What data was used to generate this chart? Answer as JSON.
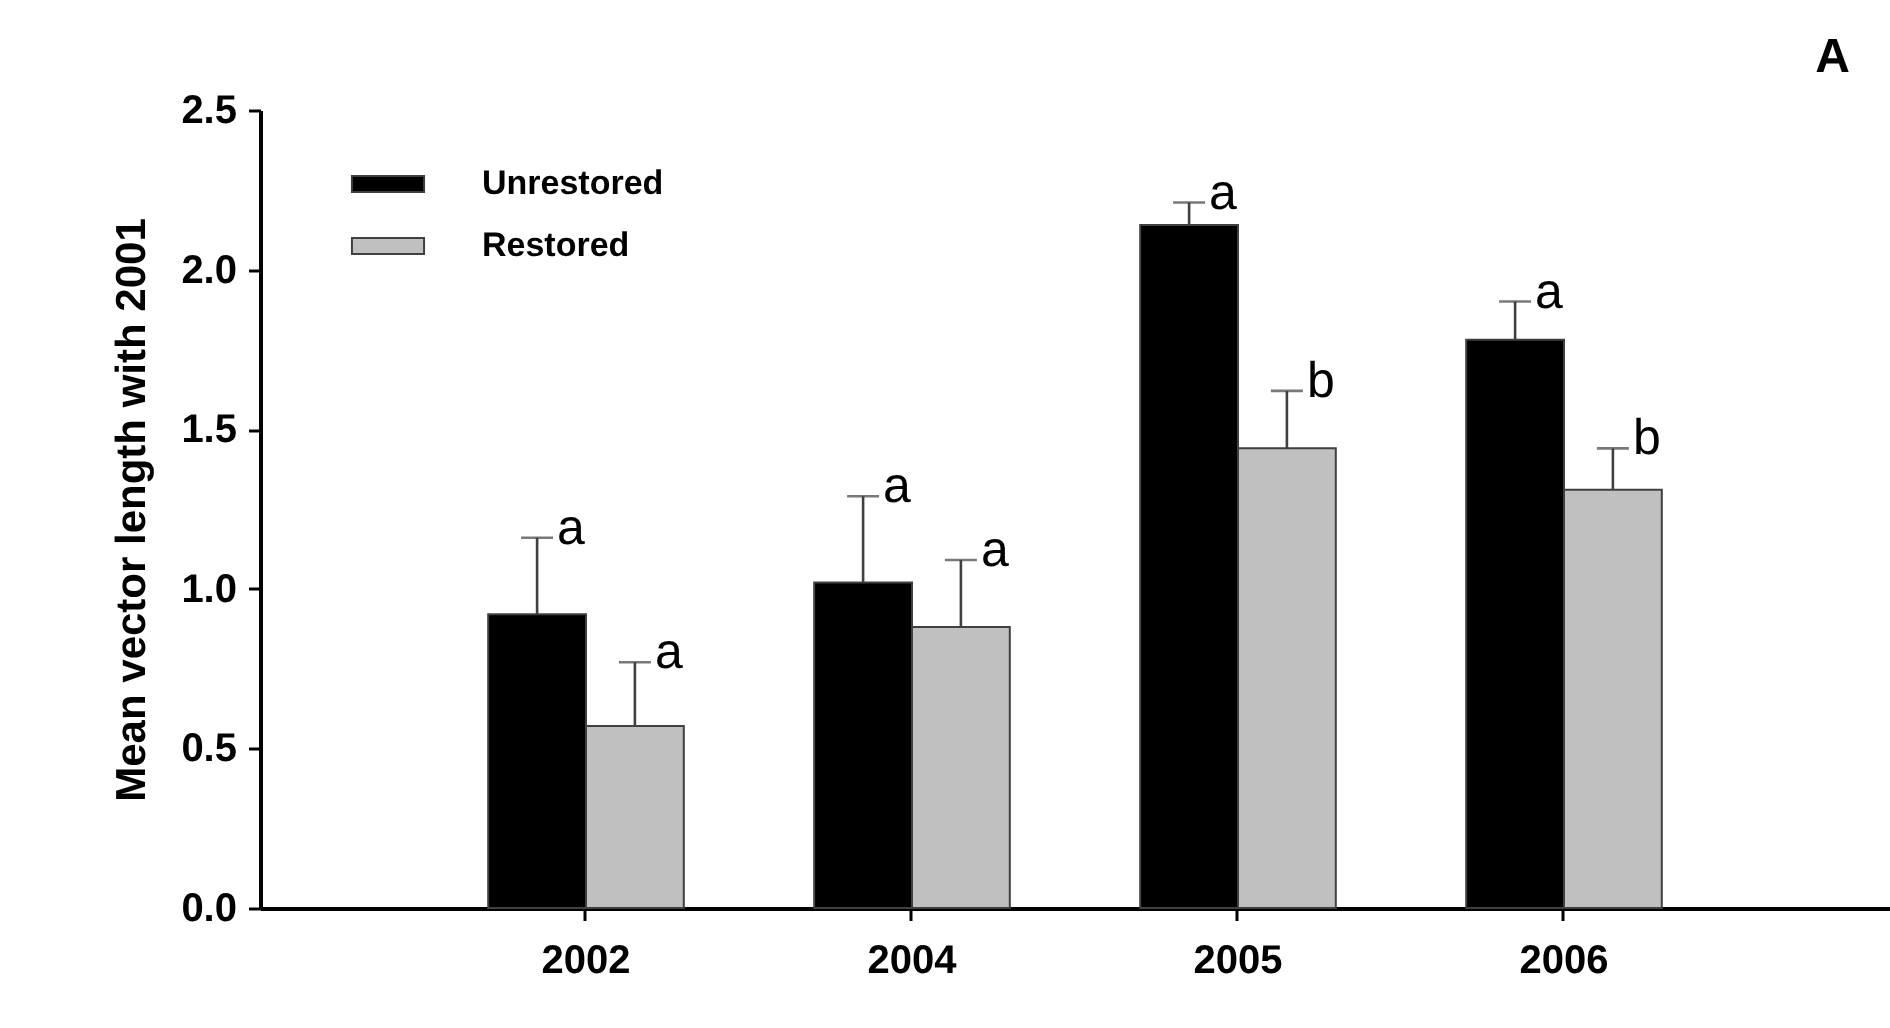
{
  "chart_data": {
    "type": "bar",
    "ylabel": "Mean vector length with 2001",
    "categories": [
      "2002",
      "2004",
      "2005",
      "2006"
    ],
    "series": [
      {
        "name": "Unrestored",
        "color": "#000000",
        "values": [
          0.92,
          1.02,
          2.14,
          1.78
        ],
        "errors": [
          [
            0.92,
            1.16
          ],
          [
            1.02,
            1.29
          ],
          [
            2.14,
            2.21
          ],
          [
            1.78,
            1.9
          ]
        ]
      },
      {
        "name": "Restored",
        "color": "#c0c0c0",
        "values": [
          0.57,
          0.88,
          1.44,
          1.31
        ],
        "errors": [
          [
            0.57,
            0.77
          ],
          [
            0.88,
            1.09
          ],
          [
            1.44,
            1.62
          ],
          [
            1.31,
            1.44
          ]
        ]
      }
    ],
    "ylim": [
      0,
      2.5
    ],
    "yticks": [
      {
        "value": 0,
        "label": "0.0"
      },
      {
        "value": 0.5,
        "label": "0.5"
      },
      {
        "value": 1,
        "label": "1.0"
      },
      {
        "value": 1.5,
        "label": "1.5"
      },
      {
        "value": 2,
        "label": "2.0"
      },
      {
        "value": 2.5,
        "label": "2.5"
      }
    ],
    "legend": "top left",
    "annotations": [
      {
        "text": "a",
        "x": "2002",
        "y": 0.92
      },
      {
        "text": "a",
        "x": "2002",
        "y": 0.57
      },
      {
        "text": "a",
        "x": "2004",
        "y": 1.02
      },
      {
        "text": "a",
        "x": "2004",
        "y": 0.88
      },
      {
        "text": "a",
        "x": "2005",
        "y": 2.14
      },
      {
        "text": "b",
        "x": "2005",
        "y": 1.44
      },
      {
        "text": "a",
        "x": "2006",
        "y": 1.78
      },
      {
        "text": "b",
        "x": "2006",
        "y": 1.31
      },
      "A"
    ]
  }
}
